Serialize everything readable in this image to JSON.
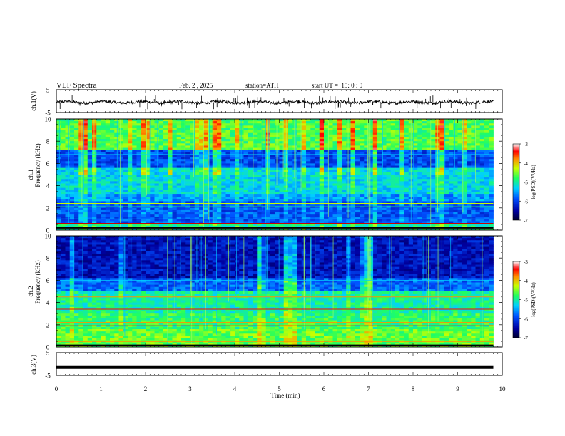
{
  "header": {
    "title": "VLF Spectra",
    "date": "Feb. 2 , 2025",
    "station": "station=ATH",
    "start": "start UT =  15: 0 : 0"
  },
  "chart_data": [
    {
      "type": "line",
      "name": "ch.1 waveform",
      "ylabel": "ch.1(V)",
      "ylim": [
        -5,
        5
      ],
      "yticks": [
        "5",
        "-5"
      ],
      "xlim": [
        0,
        10
      ],
      "approx_level": -0.5,
      "approx_noise_amplitude": 1.2,
      "spikes": true
    },
    {
      "type": "heatmap",
      "name": "ch.1 spectrogram",
      "ylabel": "ch.1 Frequency (kHz)",
      "ylim": [
        0,
        10
      ],
      "yticks": [
        "0",
        "2",
        "4",
        "6",
        "8",
        "10"
      ],
      "xlim": [
        0,
        9.8
      ],
      "colorbar": {
        "label": "log(PSD)(V²/Hz)",
        "ticks": [
          "-3",
          "-4",
          "-5",
          "-6",
          "-7"
        ],
        "range": [
          -7,
          -3
        ]
      }
    },
    {
      "type": "heatmap",
      "name": "ch.2 spectrogram",
      "ylabel": "ch.2 Frequency (kHz)",
      "ylim": [
        0,
        10
      ],
      "yticks": [
        "0",
        "2",
        "4",
        "6",
        "8",
        "10"
      ],
      "xlim": [
        0,
        9.8
      ],
      "colorbar": {
        "label": "log(PSD)(V²/Hz)",
        "ticks": [
          "-3",
          "-4",
          "-5",
          "-6",
          "-7"
        ],
        "range": [
          -7,
          -3
        ]
      }
    },
    {
      "type": "line",
      "name": "ch.3 waveform",
      "ylabel": "ch.3(V)",
      "ylim": [
        -5,
        5
      ],
      "yticks": [
        "5",
        "-5"
      ],
      "xlim": [
        0,
        10
      ],
      "approx_level": -1.5
    }
  ],
  "xaxis": {
    "label": "Time (min)",
    "ticks": [
      "0",
      "1",
      "2",
      "3",
      "4",
      "5",
      "6",
      "7",
      "8",
      "9",
      "10"
    ],
    "xlim": [
      0,
      10
    ]
  }
}
